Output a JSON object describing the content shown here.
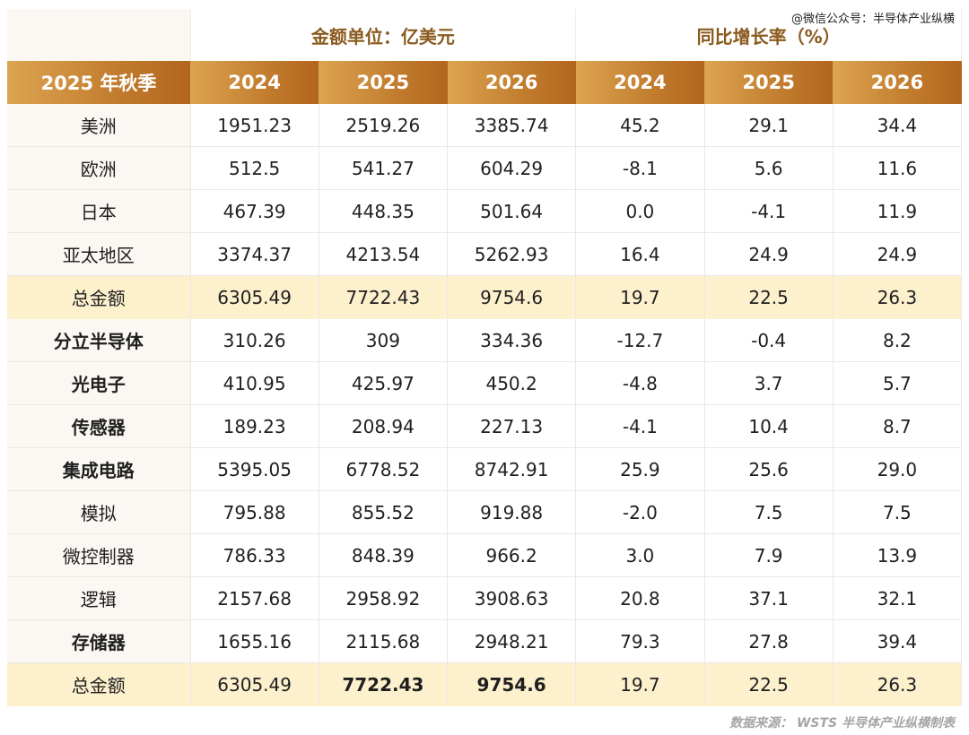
{
  "watermark": "@微信公众号：半导体产业纵横",
  "header": {
    "group_amount": "金额单位：亿美元",
    "group_growth": "同比增长率（%）",
    "columns": [
      "2025 年秋季",
      "2024",
      "2025",
      "2026",
      "2024",
      "2025",
      "2026"
    ]
  },
  "rows": [
    {
      "label": "美洲",
      "bold": false,
      "highlight": false,
      "values": [
        "1951.23",
        "2519.26",
        "3385.74",
        "45.2",
        "29.1",
        "34.4"
      ]
    },
    {
      "label": "欧洲",
      "bold": false,
      "highlight": false,
      "values": [
        "512.5",
        "541.27",
        "604.29",
        "-8.1",
        "5.6",
        "11.6"
      ]
    },
    {
      "label": "日本",
      "bold": false,
      "highlight": false,
      "values": [
        "467.39",
        "448.35",
        "501.64",
        "0.0",
        "-4.1",
        "11.9"
      ]
    },
    {
      "label": "亚太地区",
      "bold": false,
      "highlight": false,
      "values": [
        "3374.37",
        "4213.54",
        "5262.93",
        "16.4",
        "24.9",
        "24.9"
      ]
    },
    {
      "label": "总金额",
      "bold": false,
      "highlight": true,
      "values": [
        "6305.49",
        "7722.43",
        "9754.6",
        "19.7",
        "22.5",
        "26.3"
      ]
    },
    {
      "label": "分立半导体",
      "bold": true,
      "highlight": false,
      "values": [
        "310.26",
        "309",
        "334.36",
        "-12.7",
        "-0.4",
        "8.2"
      ]
    },
    {
      "label": "光电子",
      "bold": true,
      "highlight": false,
      "values": [
        "410.95",
        "425.97",
        "450.2",
        "-4.8",
        "3.7",
        "5.7"
      ]
    },
    {
      "label": "传感器",
      "bold": true,
      "highlight": false,
      "values": [
        "189.23",
        "208.94",
        "227.13",
        "-4.1",
        "10.4",
        "8.7"
      ]
    },
    {
      "label": "集成电路",
      "bold": true,
      "highlight": false,
      "values": [
        "5395.05",
        "6778.52",
        "8742.91",
        "25.9",
        "25.6",
        "29.0"
      ]
    },
    {
      "label": "模拟",
      "bold": false,
      "highlight": false,
      "values": [
        "795.88",
        "855.52",
        "919.88",
        "-2.0",
        "7.5",
        "7.5"
      ]
    },
    {
      "label": "微控制器",
      "bold": false,
      "highlight": false,
      "values": [
        "786.33",
        "848.39",
        "966.2",
        "3.0",
        "7.9",
        "13.9"
      ]
    },
    {
      "label": "逻辑",
      "bold": false,
      "highlight": false,
      "values": [
        "2157.68",
        "2958.92",
        "3908.63",
        "20.8",
        "37.1",
        "32.1"
      ]
    },
    {
      "label": "存储器",
      "bold": true,
      "highlight": false,
      "values": [
        "1655.16",
        "2115.68",
        "2948.21",
        "79.3",
        "27.8",
        "39.4"
      ]
    },
    {
      "label": "总金额",
      "bold": false,
      "highlight": true,
      "values": [
        "6305.49",
        "7722.43",
        "9754.6",
        "19.7",
        "22.5",
        "26.3"
      ]
    }
  ],
  "footer": "数据来源： WSTS 半导体产业纵横制表",
  "colors": {
    "header_gold_light": "#dca550",
    "header_gold_dark": "#b2651d",
    "highlight_row": "#fdf0cd",
    "group_title": "#8a5a1e"
  }
}
